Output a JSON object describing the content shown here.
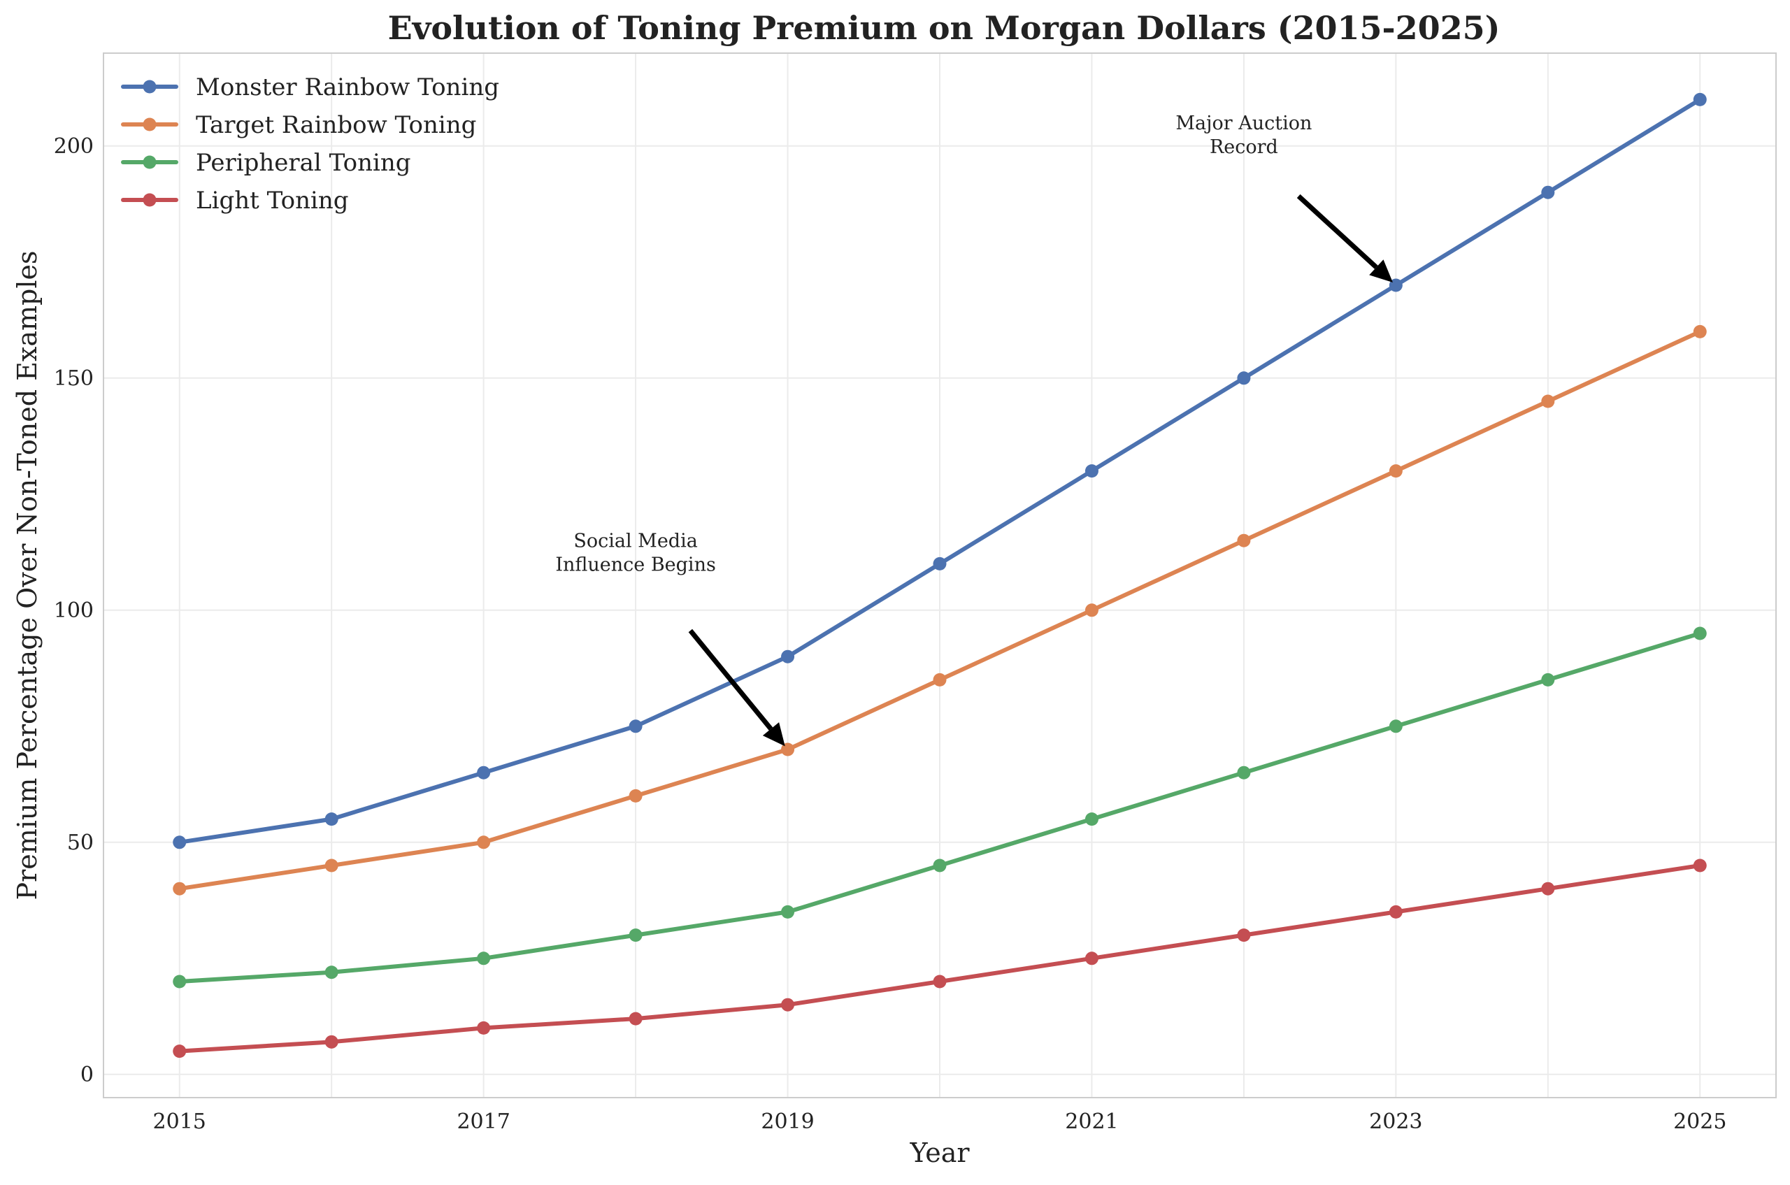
{
  "chart_data": {
    "type": "line",
    "title": "Evolution of Toning Premium on Morgan Dollars (2015-2025)",
    "xlabel": "Year",
    "ylabel": "Premium Percentage Over Non-Toned Examples",
    "x": [
      2015,
      2016,
      2017,
      2018,
      2019,
      2020,
      2021,
      2022,
      2023,
      2024,
      2025
    ],
    "xticks": [
      "2015",
      "2017",
      "2019",
      "2021",
      "2023",
      "2025"
    ],
    "yticks": [
      "0",
      "50",
      "100",
      "150",
      "200"
    ],
    "xlim": [
      2014.5,
      2025.5
    ],
    "ylim": [
      -5,
      220
    ],
    "grid": true,
    "legend_position": "top-left",
    "series": [
      {
        "name": "Monster Rainbow Toning",
        "color": "#4c72b0",
        "values": [
          50,
          55,
          65,
          75,
          90,
          110,
          130,
          150,
          170,
          190,
          210
        ]
      },
      {
        "name": "Target Rainbow Toning",
        "color": "#dd8452",
        "values": [
          40,
          45,
          50,
          60,
          70,
          85,
          100,
          115,
          130,
          145,
          160
        ]
      },
      {
        "name": "Peripheral Toning",
        "color": "#55a868",
        "values": [
          20,
          22,
          25,
          30,
          35,
          45,
          55,
          65,
          75,
          85,
          95
        ]
      },
      {
        "name": "Light Toning",
        "color": "#c44e52",
        "values": [
          5,
          7,
          10,
          12,
          15,
          20,
          25,
          30,
          35,
          40,
          45
        ]
      }
    ],
    "annotations": [
      {
        "lines": [
          "Social Media",
          "Influence Begins"
        ],
        "point": [
          2019,
          70
        ],
        "text_at": [
          2018,
          110
        ]
      },
      {
        "lines": [
          "Major Auction",
          "Record"
        ],
        "point": [
          2023,
          170
        ],
        "text_at": [
          2022,
          200
        ]
      }
    ]
  }
}
